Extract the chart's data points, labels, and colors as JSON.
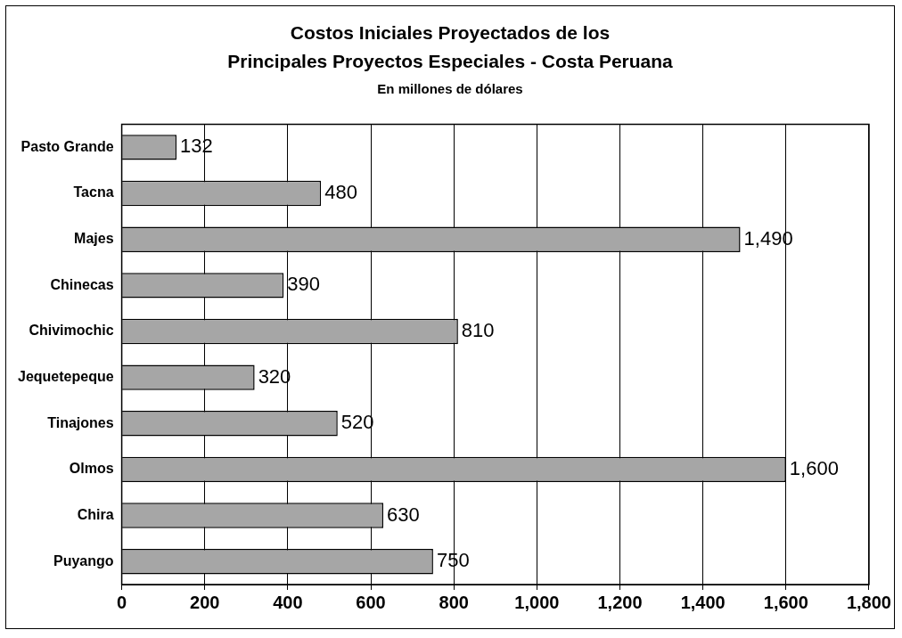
{
  "chart_data": {
    "type": "bar",
    "orientation": "horizontal",
    "title": "Costos Iniciales Proyectados de los\nPrincipales Proyectos Especiales - Costa Peruana",
    "subtitle": "En millones de dólares",
    "categories": [
      "Pasto Grande",
      "Tacna",
      "Majes",
      "Chinecas",
      "Chivimochic",
      "Jequetepeque",
      "Tinajones",
      "Olmos",
      "Chira",
      "Puyango"
    ],
    "values": [
      132,
      480,
      1490,
      390,
      810,
      320,
      520,
      1600,
      630,
      750
    ],
    "value_labels": [
      "132",
      "480",
      "1,490",
      "390",
      "810",
      "320",
      "520",
      "1,600",
      "630",
      "750"
    ],
    "color": "#a6a6a6",
    "xlim": [
      0,
      1800
    ],
    "xticks": [
      0,
      200,
      400,
      600,
      800,
      {
        "value": 1000,
        "label": "1,000"
      },
      {
        "value": 1200,
        "label": "1,200"
      },
      {
        "value": 1400,
        "label": "1,400"
      },
      {
        "value": 1600,
        "label": "1,600"
      },
      {
        "value": 1800,
        "label": "1,800"
      }
    ],
    "grid": "x",
    "legend": false
  }
}
